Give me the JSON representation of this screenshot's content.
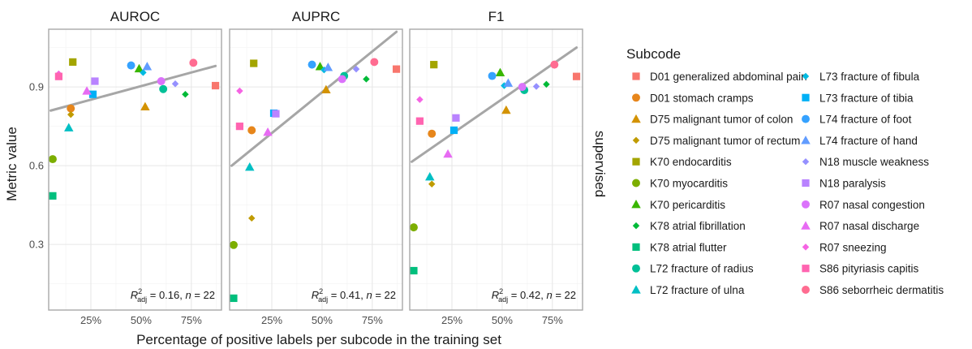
{
  "chart_data": {
    "type": "scatter",
    "x_title": "Percentage of positive labels per subcode in the training set",
    "y_title": "Metric value",
    "side_label": "supervised",
    "legend_title": "Subcode",
    "xlim": [
      0.04,
      0.9
    ],
    "ylim": [
      0.05,
      1.12
    ],
    "x_ticks": [
      0.25,
      0.5,
      0.75
    ],
    "x_tick_labels": [
      "25%",
      "50%",
      "75%"
    ],
    "y_ticks": [
      0.3,
      0.6,
      0.9
    ],
    "y_tick_labels": [
      "0.3",
      "0.6",
      "0.9"
    ],
    "grid": true,
    "legend_position": "right",
    "series": [
      {
        "name": "D01 generalized abdominal pain",
        "color": "#F8766D",
        "shape": "square"
      },
      {
        "name": "D01 stomach cramps",
        "color": "#E7861B",
        "shape": "circle"
      },
      {
        "name": "D75 malignant tumor of colon",
        "color": "#D39200",
        "shape": "triangle"
      },
      {
        "name": "D75 malignant tumor of rectum",
        "color": "#C09B00",
        "shape": "diamond"
      },
      {
        "name": "K70 endocarditis",
        "color": "#A3A500",
        "shape": "square"
      },
      {
        "name": "K70 myocarditis",
        "color": "#7CAE00",
        "shape": "circle"
      },
      {
        "name": "K70 pericarditis",
        "color": "#39B600",
        "shape": "triangle"
      },
      {
        "name": "K78 atrial fibrillation",
        "color": "#00BA38",
        "shape": "diamond"
      },
      {
        "name": "K78 atrial flutter",
        "color": "#00BF7D",
        "shape": "square"
      },
      {
        "name": "L72 fracture of radius",
        "color": "#00C097",
        "shape": "circle"
      },
      {
        "name": "L72 fracture of ulna",
        "color": "#00BFC4",
        "shape": "triangle"
      },
      {
        "name": "L73 fracture of fibula",
        "color": "#00BAE0",
        "shape": "diamond"
      },
      {
        "name": "L73 fracture of tibia",
        "color": "#00B0F6",
        "shape": "square"
      },
      {
        "name": "L74 fracture of foot",
        "color": "#35A2FF",
        "shape": "circle"
      },
      {
        "name": "L74 fracture of hand",
        "color": "#619CFF",
        "shape": "triangle"
      },
      {
        "name": "N18 muscle weakness",
        "color": "#9590FF",
        "shape": "diamond"
      },
      {
        "name": "N18 paralysis",
        "color": "#B983FF",
        "shape": "square"
      },
      {
        "name": "R07 nasal congestion",
        "color": "#DB72FB",
        "shape": "circle"
      },
      {
        "name": "R07 nasal discharge",
        "color": "#E76BF3",
        "shape": "triangle"
      },
      {
        "name": "R07 sneezing",
        "color": "#F564E3",
        "shape": "diamond"
      },
      {
        "name": "S86 pityriasis capitis",
        "color": "#FF64B0",
        "shape": "square"
      },
      {
        "name": "S86 seborrheic dermatitis",
        "color": "#FF6C91",
        "shape": "circle"
      }
    ],
    "panels": [
      {
        "title": "AUROC",
        "annotation_stat": " = 0.16, ",
        "annotation_n": " = 22",
        "fit": {
          "x": [
            0.05,
            0.87
          ],
          "y": [
            0.81,
            0.98
          ]
        },
        "points": [
          {
            "series": 0,
            "x": 0.87,
            "y": 0.905
          },
          {
            "series": 1,
            "x": 0.15,
            "y": 0.818
          },
          {
            "series": 2,
            "x": 0.52,
            "y": 0.825
          },
          {
            "series": 3,
            "x": 0.15,
            "y": 0.795
          },
          {
            "series": 4,
            "x": 0.16,
            "y": 0.995
          },
          {
            "series": 5,
            "x": 0.06,
            "y": 0.625
          },
          {
            "series": 6,
            "x": 0.49,
            "y": 0.97
          },
          {
            "series": 7,
            "x": 0.72,
            "y": 0.872
          },
          {
            "series": 8,
            "x": 0.06,
            "y": 0.485
          },
          {
            "series": 9,
            "x": 0.61,
            "y": 0.892
          },
          {
            "series": 10,
            "x": 0.14,
            "y": 0.745
          },
          {
            "series": 11,
            "x": 0.51,
            "y": 0.955
          },
          {
            "series": 12,
            "x": 0.26,
            "y": 0.872
          },
          {
            "series": 13,
            "x": 0.45,
            "y": 0.982
          },
          {
            "series": 14,
            "x": 0.53,
            "y": 0.978
          },
          {
            "series": 15,
            "x": 0.67,
            "y": 0.912
          },
          {
            "series": 16,
            "x": 0.27,
            "y": 0.922
          },
          {
            "series": 17,
            "x": 0.6,
            "y": 0.922
          },
          {
            "series": 18,
            "x": 0.23,
            "y": 0.885
          },
          {
            "series": 19,
            "x": 0.09,
            "y": 0.95
          },
          {
            "series": 20,
            "x": 0.09,
            "y": 0.94
          },
          {
            "series": 21,
            "x": 0.76,
            "y": 0.992
          }
        ]
      },
      {
        "title": "AUPRC",
        "annotation_stat": " = 0.41, ",
        "annotation_n": " = 22",
        "fit": {
          "x": [
            0.05,
            0.87
          ],
          "y": [
            0.6,
            1.11
          ]
        },
        "points": [
          {
            "series": 0,
            "x": 0.87,
            "y": 0.968
          },
          {
            "series": 1,
            "x": 0.15,
            "y": 0.735
          },
          {
            "series": 2,
            "x": 0.52,
            "y": 0.89
          },
          {
            "series": 3,
            "x": 0.15,
            "y": 0.4
          },
          {
            "series": 4,
            "x": 0.16,
            "y": 0.99
          },
          {
            "series": 5,
            "x": 0.06,
            "y": 0.298
          },
          {
            "series": 6,
            "x": 0.49,
            "y": 0.978
          },
          {
            "series": 7,
            "x": 0.72,
            "y": 0.93
          },
          {
            "series": 8,
            "x": 0.06,
            "y": 0.095
          },
          {
            "series": 9,
            "x": 0.61,
            "y": 0.942
          },
          {
            "series": 10,
            "x": 0.14,
            "y": 0.595
          },
          {
            "series": 11,
            "x": 0.51,
            "y": 0.965
          },
          {
            "series": 12,
            "x": 0.26,
            "y": 0.8
          },
          {
            "series": 13,
            "x": 0.45,
            "y": 0.985
          },
          {
            "series": 14,
            "x": 0.53,
            "y": 0.975
          },
          {
            "series": 15,
            "x": 0.67,
            "y": 0.968
          },
          {
            "series": 16,
            "x": 0.27,
            "y": 0.798
          },
          {
            "series": 17,
            "x": 0.6,
            "y": 0.93
          },
          {
            "series": 18,
            "x": 0.23,
            "y": 0.728
          },
          {
            "series": 19,
            "x": 0.09,
            "y": 0.885
          },
          {
            "series": 20,
            "x": 0.09,
            "y": 0.75
          },
          {
            "series": 21,
            "x": 0.76,
            "y": 0.995
          }
        ]
      },
      {
        "title": "F1",
        "annotation_stat": " = 0.42, ",
        "annotation_n": " = 22",
        "fit": {
          "x": [
            0.05,
            0.87
          ],
          "y": [
            0.615,
            1.05
          ]
        },
        "points": [
          {
            "series": 0,
            "x": 0.87,
            "y": 0.94
          },
          {
            "series": 1,
            "x": 0.15,
            "y": 0.722
          },
          {
            "series": 2,
            "x": 0.52,
            "y": 0.812
          },
          {
            "series": 3,
            "x": 0.15,
            "y": 0.53
          },
          {
            "series": 4,
            "x": 0.16,
            "y": 0.985
          },
          {
            "series": 5,
            "x": 0.06,
            "y": 0.365
          },
          {
            "series": 6,
            "x": 0.49,
            "y": 0.955
          },
          {
            "series": 7,
            "x": 0.72,
            "y": 0.91
          },
          {
            "series": 8,
            "x": 0.06,
            "y": 0.2
          },
          {
            "series": 9,
            "x": 0.61,
            "y": 0.888
          },
          {
            "series": 10,
            "x": 0.14,
            "y": 0.558
          },
          {
            "series": 11,
            "x": 0.51,
            "y": 0.905
          },
          {
            "series": 12,
            "x": 0.26,
            "y": 0.735
          },
          {
            "series": 13,
            "x": 0.45,
            "y": 0.942
          },
          {
            "series": 14,
            "x": 0.53,
            "y": 0.915
          },
          {
            "series": 15,
            "x": 0.67,
            "y": 0.902
          },
          {
            "series": 16,
            "x": 0.27,
            "y": 0.782
          },
          {
            "series": 17,
            "x": 0.6,
            "y": 0.9
          },
          {
            "series": 18,
            "x": 0.23,
            "y": 0.645
          },
          {
            "series": 19,
            "x": 0.09,
            "y": 0.852
          },
          {
            "series": 20,
            "x": 0.09,
            "y": 0.77
          },
          {
            "series": 21,
            "x": 0.76,
            "y": 0.985
          }
        ]
      }
    ]
  }
}
